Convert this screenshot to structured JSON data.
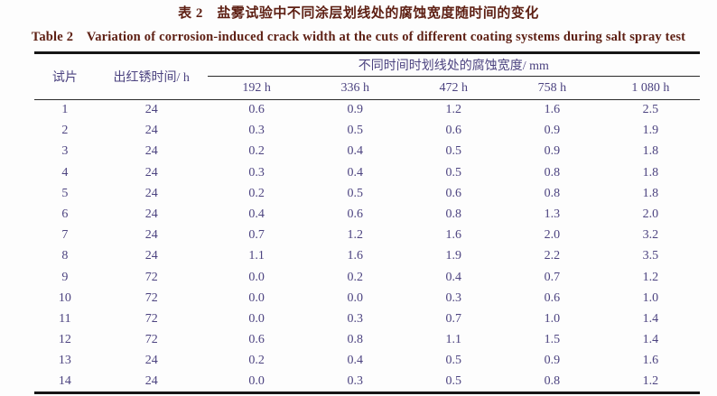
{
  "caption": {
    "title_cn": "表 2　盐雾试验中不同涂层划线处的腐蚀宽度随时间的变化",
    "title_en": "Table 2　Variation of corrosion-induced crack width at the cuts of different coating systems during salt spray test"
  },
  "table": {
    "col_specimen_header": "试片",
    "col_rust_time_header": "出红锈时间/ h",
    "span_header": "不同时间时划线处的腐蚀宽度/ mm",
    "time_headers": [
      "192 h",
      "336 h",
      "472 h",
      "758 h",
      "1 080 h"
    ],
    "rows": [
      {
        "id": "1",
        "rust_time": "24",
        "values": [
          "0.6",
          "0.9",
          "1.2",
          "1.6",
          "2.5"
        ]
      },
      {
        "id": "2",
        "rust_time": "24",
        "values": [
          "0.3",
          "0.5",
          "0.6",
          "0.9",
          "1.9"
        ]
      },
      {
        "id": "3",
        "rust_time": "24",
        "values": [
          "0.2",
          "0.4",
          "0.5",
          "0.9",
          "1.8"
        ]
      },
      {
        "id": "4",
        "rust_time": "24",
        "values": [
          "0.3",
          "0.4",
          "0.5",
          "0.8",
          "1.8"
        ]
      },
      {
        "id": "5",
        "rust_time": "24",
        "values": [
          "0.2",
          "0.5",
          "0.6",
          "0.8",
          "1.8"
        ]
      },
      {
        "id": "6",
        "rust_time": "24",
        "values": [
          "0.4",
          "0.6",
          "0.8",
          "1.3",
          "2.0"
        ]
      },
      {
        "id": "7",
        "rust_time": "24",
        "values": [
          "0.7",
          "1.2",
          "1.6",
          "2.0",
          "3.2"
        ]
      },
      {
        "id": "8",
        "rust_time": "24",
        "values": [
          "1.1",
          "1.6",
          "1.9",
          "2.2",
          "3.5"
        ]
      },
      {
        "id": "9",
        "rust_time": "72",
        "values": [
          "0.0",
          "0.2",
          "0.4",
          "0.7",
          "1.2"
        ]
      },
      {
        "id": "10",
        "rust_time": "72",
        "values": [
          "0.0",
          "0.0",
          "0.3",
          "0.6",
          "1.0"
        ]
      },
      {
        "id": "11",
        "rust_time": "72",
        "values": [
          "0.0",
          "0.3",
          "0.7",
          "1.0",
          "1.4"
        ]
      },
      {
        "id": "12",
        "rust_time": "72",
        "values": [
          "0.6",
          "0.8",
          "1.1",
          "1.5",
          "1.4"
        ]
      },
      {
        "id": "13",
        "rust_time": "24",
        "values": [
          "0.2",
          "0.4",
          "0.5",
          "0.9",
          "1.6"
        ]
      },
      {
        "id": "14",
        "rust_time": "24",
        "values": [
          "0.0",
          "0.3",
          "0.5",
          "0.8",
          "1.2"
        ]
      }
    ]
  },
  "colors": {
    "title": "#5e2014",
    "body_text": "#4c4380",
    "rule": "#161616",
    "background": "#fdfdfd"
  }
}
